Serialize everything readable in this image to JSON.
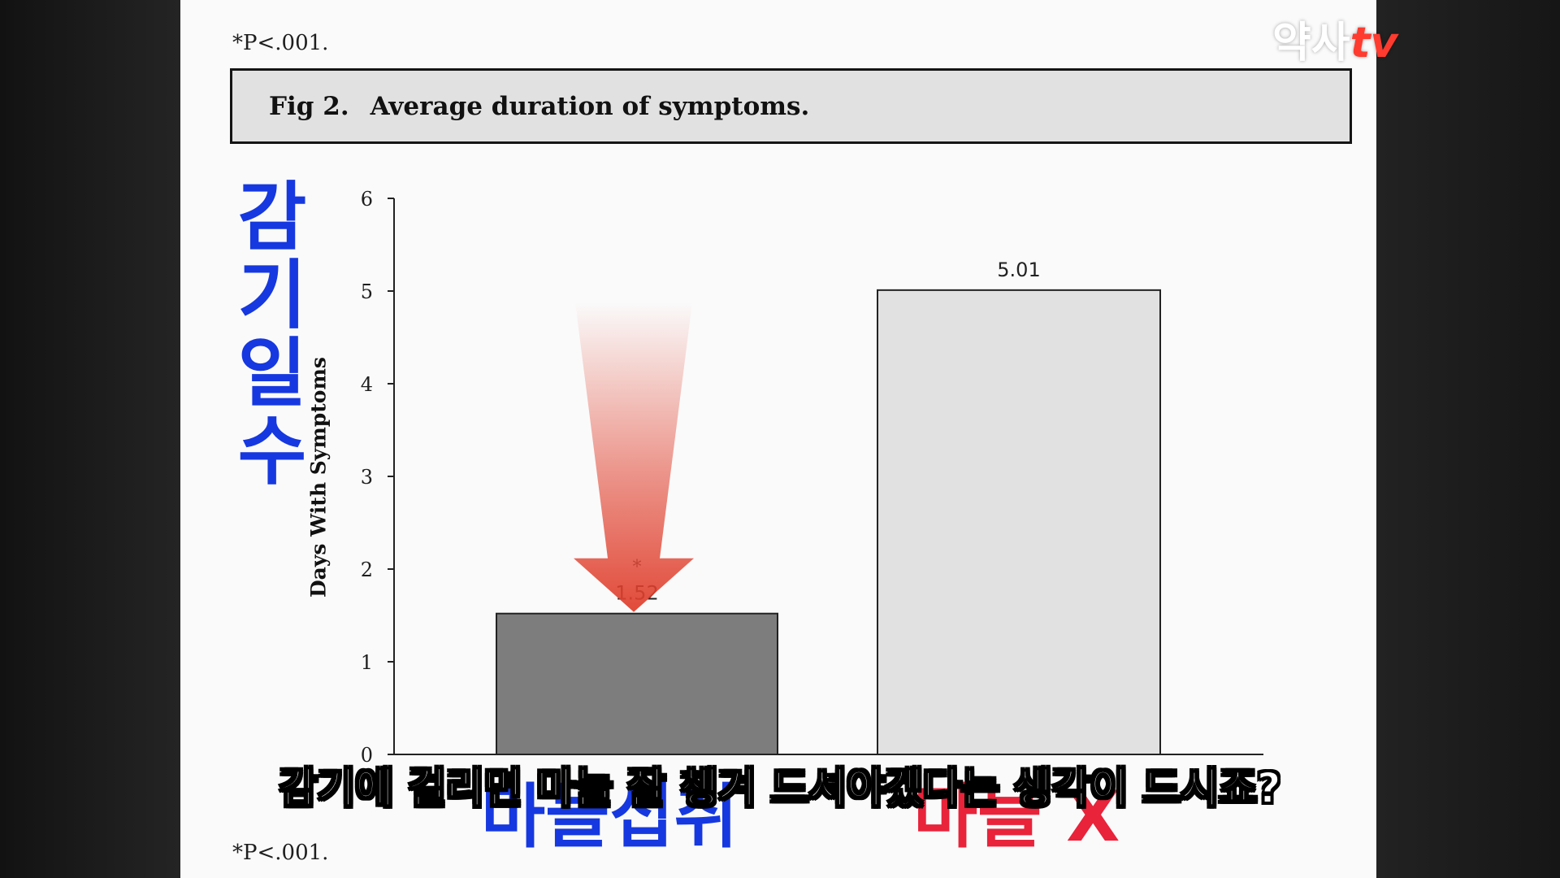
{
  "footnote_top": "*P<.001.",
  "footnote_bottom": "*P<.001.",
  "figure": {
    "number": "Fig 2.",
    "title": "Average duration of symptoms."
  },
  "overlay_vertical_label": "감기일수",
  "overlay_category_labels": [
    "마늘섭취",
    "마늘 X"
  ],
  "watermark": {
    "main": "약사",
    "suffix": "tv"
  },
  "subtitle": "감기에 걸리면 마늘 잘 챙겨 드셔야겠다는 생각이 드시죠?",
  "colors": {
    "bar_garlic": "#7d7d7d",
    "bar_control": "#e1e1e1",
    "arrow": "#e0412f",
    "overlay_blue": "#1638e0",
    "overlay_red": "#e8233a"
  },
  "chart_data": {
    "type": "bar",
    "title": "Average duration of symptoms.",
    "xlabel": "",
    "ylabel": "Days With Symptoms",
    "ylim": [
      0,
      6
    ],
    "yticks": [
      0,
      1,
      2,
      3,
      4,
      5,
      6
    ],
    "categories": [
      "마늘섭취",
      "마늘 X"
    ],
    "values": [
      1.52,
      5.01
    ],
    "data_labels": [
      "1.52",
      "5.01"
    ],
    "significance_marker": "*",
    "grid": false
  }
}
